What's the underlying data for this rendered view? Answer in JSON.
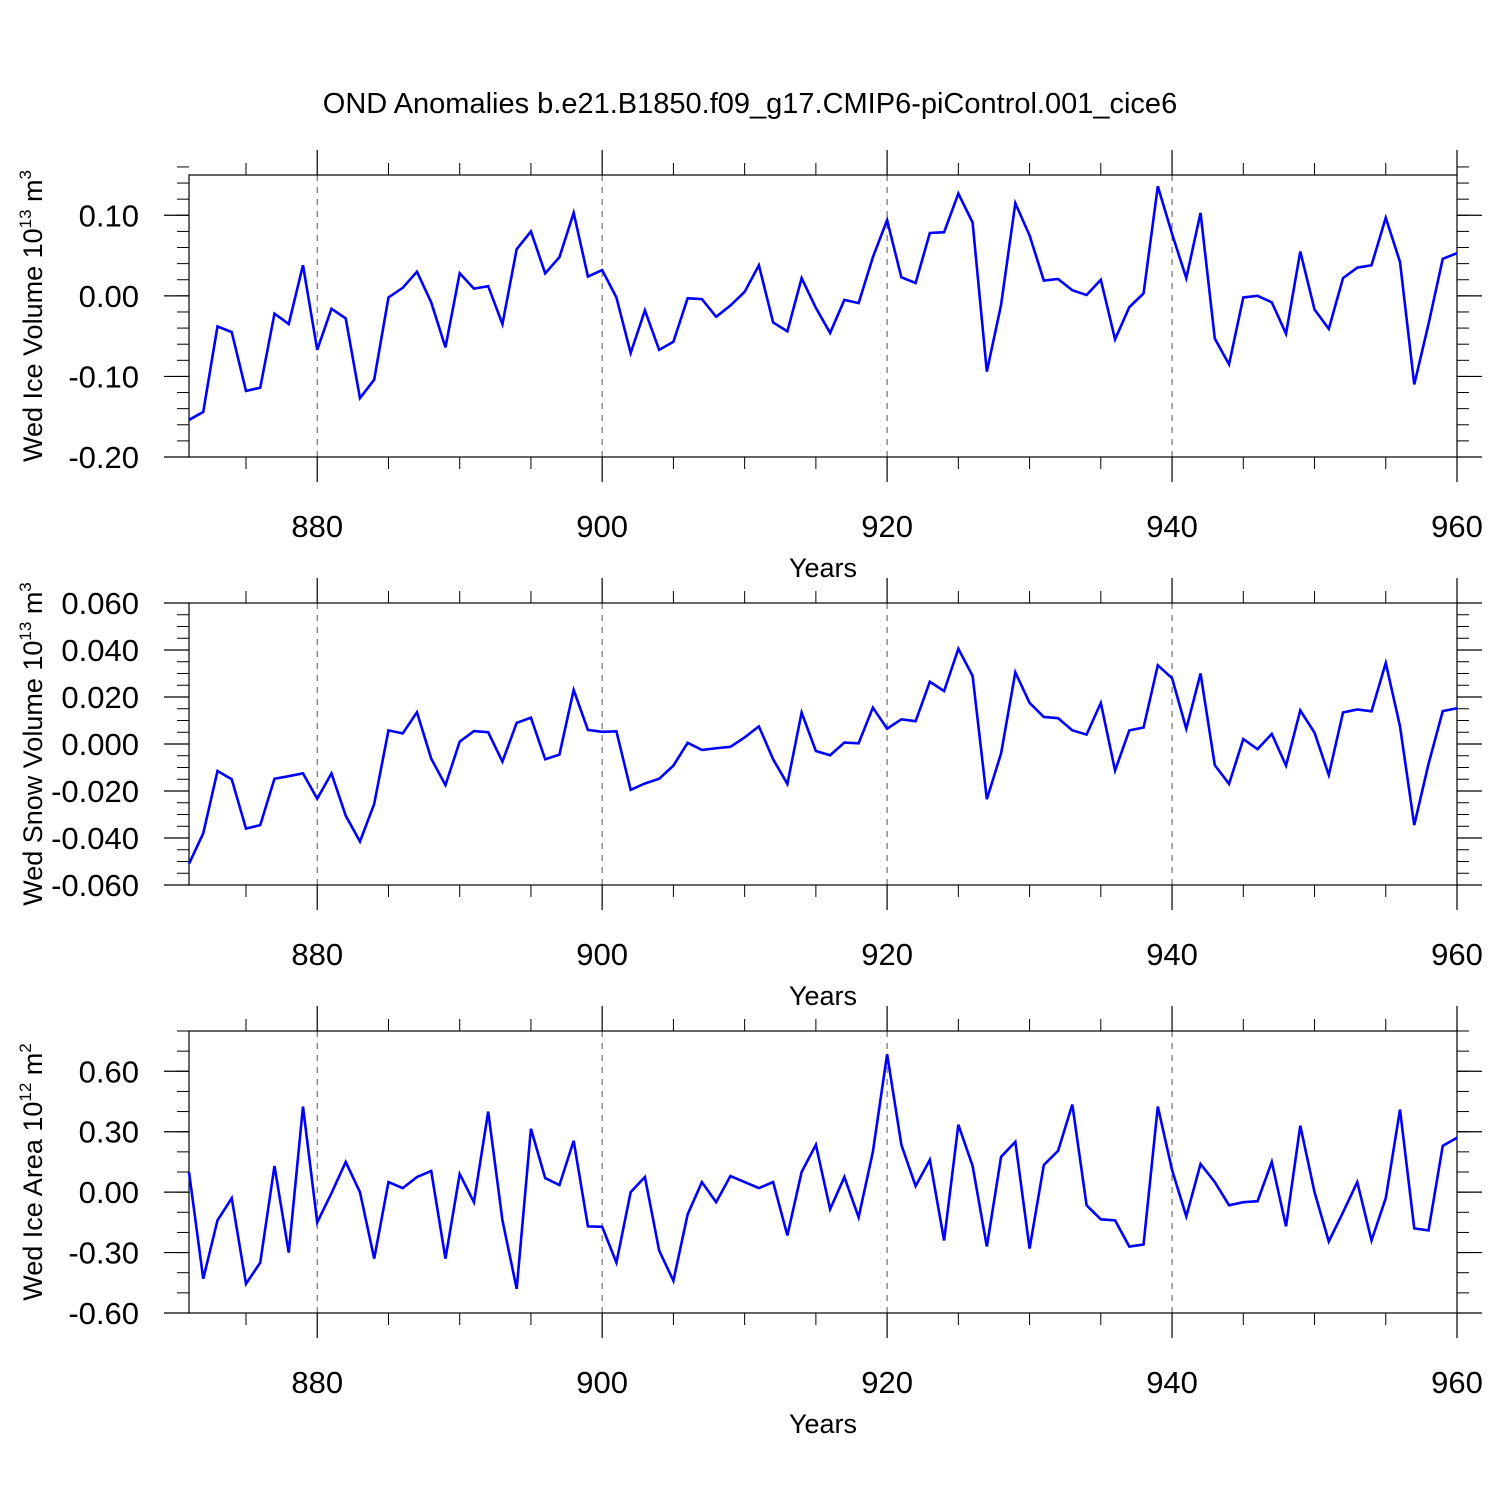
{
  "title": "OND Anomalies b.e21.B1850.f09_g17.CMIP6-piControl.001_cice6",
  "line_color": "#0000ff",
  "chart_data": [
    {
      "type": "line",
      "title": "OND Anomalies b.e21.B1850.f09_g17.CMIP6-piControl.001_cice6",
      "xlabel": "Years",
      "ylabel": {
        "main": "Wed Ice Volume 10",
        "exp": "13",
        "unit": " m",
        "unit_exp": "3"
      },
      "xlim": [
        871,
        960
      ],
      "ylim": [
        -0.2,
        0.15
      ],
      "x_ticks": [
        880,
        900,
        920,
        940,
        960
      ],
      "y_ticks": [
        -0.2,
        -0.1,
        0.0,
        0.1
      ],
      "y_tick_labels": [
        "-0.20",
        "-0.10",
        "0.00",
        "0.10"
      ],
      "grid": "vertical dashed at major x ticks",
      "series": [
        {
          "name": "Wed Ice Volume",
          "x0": 871,
          "values": [
            -0.154,
            -0.144,
            -0.038,
            -0.045,
            -0.118,
            -0.114,
            -0.022,
            -0.035,
            0.038,
            -0.067,
            -0.016,
            -0.028,
            -0.127,
            -0.104,
            -0.002,
            0.01,
            0.03,
            -0.008,
            -0.064,
            0.028,
            0.009,
            0.012,
            -0.035,
            0.058,
            0.08,
            0.028,
            0.048,
            0.103,
            0.024,
            0.032,
            -0.002,
            -0.071,
            -0.018,
            -0.067,
            -0.057,
            -0.003,
            -0.004,
            -0.026,
            -0.012,
            0.005,
            0.038,
            -0.033,
            -0.044,
            0.022,
            -0.015,
            -0.046,
            -0.005,
            -0.009,
            0.048,
            0.094,
            0.023,
            0.016,
            0.078,
            0.079,
            0.127,
            0.091,
            -0.094,
            -0.011,
            0.115,
            0.075,
            0.019,
            0.021,
            0.007,
            0.001,
            0.02,
            -0.054,
            -0.014,
            0.003,
            0.136,
            0.077,
            0.022,
            0.103,
            -0.053,
            -0.085,
            -0.002,
            0.0,
            -0.008,
            -0.047,
            0.055,
            -0.017,
            -0.041,
            0.022,
            0.035,
            0.038,
            0.097,
            0.042,
            -0.11,
            -0.035,
            0.046,
            0.053
          ]
        }
      ]
    },
    {
      "type": "line",
      "xlabel": "Years",
      "ylabel": {
        "main": "Wed Snow Volume 10",
        "exp": "13",
        "unit": " m",
        "unit_exp": "3"
      },
      "xlim": [
        871,
        960
      ],
      "ylim": [
        -0.06,
        0.06
      ],
      "x_ticks": [
        880,
        900,
        920,
        940,
        960
      ],
      "y_ticks": [
        -0.06,
        -0.04,
        -0.02,
        0.0,
        0.02,
        0.04,
        0.06
      ],
      "y_tick_labels": [
        "-0.060",
        "-0.040",
        "-0.020",
        "0.000",
        "0.020",
        "0.040",
        "0.060"
      ],
      "grid": "vertical dashed at major x ticks",
      "series": [
        {
          "name": "Wed Snow Volume",
          "x0": 871,
          "values": [
            -0.051,
            -0.038,
            -0.0115,
            -0.015,
            -0.036,
            -0.0345,
            -0.0148,
            -0.0137,
            -0.0125,
            -0.0233,
            -0.0125,
            -0.0305,
            -0.0415,
            -0.0255,
            0.0058,
            0.0045,
            0.0135,
            -0.0062,
            -0.0175,
            0.001,
            0.0055,
            0.005,
            -0.0075,
            0.009,
            0.0112,
            -0.0065,
            -0.0045,
            0.023,
            0.006,
            0.0052,
            0.0054,
            -0.0195,
            -0.0168,
            -0.0148,
            -0.0092,
            0.0005,
            -0.0025,
            -0.0018,
            -0.0012,
            0.0028,
            0.0075,
            -0.0065,
            -0.017,
            0.0134,
            -0.003,
            -0.0048,
            0.0006,
            0.0003,
            0.0155,
            0.0065,
            0.0105,
            0.0097,
            0.0265,
            0.0225,
            0.0405,
            0.029,
            -0.0235,
            -0.004,
            0.0305,
            0.0175,
            0.0115,
            0.011,
            0.0058,
            0.004,
            0.0175,
            -0.0113,
            0.0058,
            0.007,
            0.0335,
            0.028,
            0.0065,
            0.03,
            -0.009,
            -0.017,
            0.0021,
            -0.0022,
            0.0043,
            -0.0092,
            0.0143,
            0.0048,
            -0.0132,
            0.0134,
            0.0147,
            0.0139,
            0.0345,
            0.0075,
            -0.0345,
            -0.0085,
            0.014,
            0.0152
          ]
        }
      ]
    },
    {
      "type": "line",
      "xlabel": "Years",
      "ylabel": {
        "main": "Wed Ice Area 10",
        "exp": "12",
        "unit": " m",
        "unit_exp": "2"
      },
      "xlim": [
        871,
        960
      ],
      "ylim": [
        -0.6,
        0.8
      ],
      "x_ticks": [
        880,
        900,
        920,
        940,
        960
      ],
      "y_ticks": [
        -0.6,
        -0.3,
        0.0,
        0.3,
        0.6
      ],
      "y_tick_labels": [
        "-0.60",
        "-0.30",
        "0.00",
        "0.30",
        "0.60"
      ],
      "grid": "vertical dashed at major x ticks",
      "series": [
        {
          "name": "Wed Ice Area",
          "x0": 871,
          "values": [
            0.1,
            -0.43,
            -0.14,
            -0.03,
            -0.455,
            -0.35,
            0.13,
            -0.3,
            0.425,
            -0.15,
            -0.005,
            0.15,
            0.0,
            -0.33,
            0.05,
            0.02,
            0.075,
            0.105,
            -0.33,
            0.09,
            -0.05,
            0.4,
            -0.14,
            -0.48,
            0.315,
            0.07,
            0.035,
            0.255,
            -0.17,
            -0.172,
            -0.35,
            0.0,
            0.075,
            -0.29,
            -0.44,
            -0.11,
            0.05,
            -0.05,
            0.08,
            0.05,
            0.02,
            0.05,
            -0.215,
            0.1,
            0.235,
            -0.085,
            0.075,
            -0.125,
            0.2,
            0.685,
            0.235,
            0.03,
            0.16,
            -0.24,
            0.335,
            0.13,
            -0.27,
            0.175,
            0.25,
            -0.28,
            0.135,
            0.205,
            0.435,
            -0.065,
            -0.135,
            -0.14,
            -0.27,
            -0.26,
            0.425,
            0.11,
            -0.12,
            0.14,
            0.05,
            -0.065,
            -0.05,
            -0.045,
            0.15,
            -0.17,
            0.33,
            0.0,
            -0.245,
            -0.1,
            0.05,
            -0.24,
            -0.03,
            0.41,
            -0.18,
            -0.19,
            0.23,
            0.27
          ]
        }
      ]
    }
  ]
}
